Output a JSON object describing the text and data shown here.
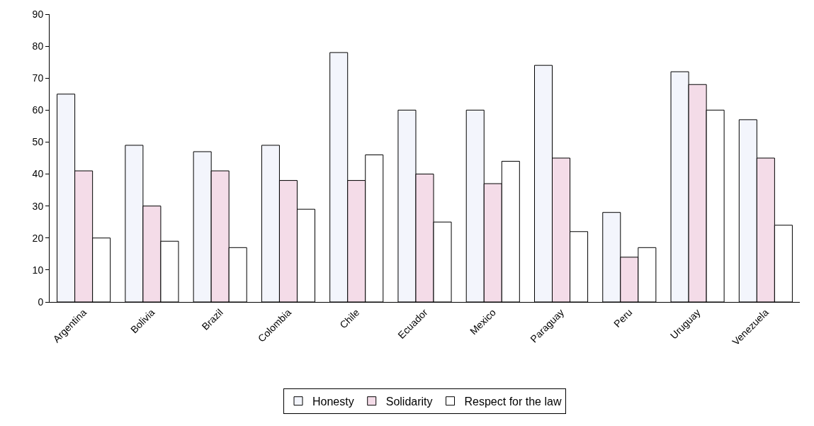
{
  "chart_data": {
    "type": "bar",
    "categories": [
      "Argentina",
      "Bolivia",
      "Brazil",
      "Colombia",
      "Chile",
      "Ecuador",
      "Mexico",
      "Paraguay",
      "Peru",
      "Uruguay",
      "Venezuela"
    ],
    "series": [
      {
        "name": "Honesty",
        "color": "#f3f5fc",
        "values": [
          65,
          49,
          47,
          49,
          78,
          60,
          60,
          74,
          28,
          72,
          57
        ]
      },
      {
        "name": "Solidarity",
        "color": "#f4dce8",
        "values": [
          41,
          30,
          41,
          38,
          38,
          40,
          37,
          45,
          14,
          68,
          45
        ]
      },
      {
        "name": "Respect for the law",
        "color": "#ffffff",
        "values": [
          20,
          19,
          17,
          29,
          46,
          25,
          44,
          22,
          17,
          60,
          24
        ]
      }
    ],
    "ylim": [
      0,
      90
    ],
    "yticks": [
      0,
      10,
      20,
      30,
      40,
      50,
      60,
      70,
      80,
      90
    ],
    "grid": false,
    "legend": "bottom"
  }
}
